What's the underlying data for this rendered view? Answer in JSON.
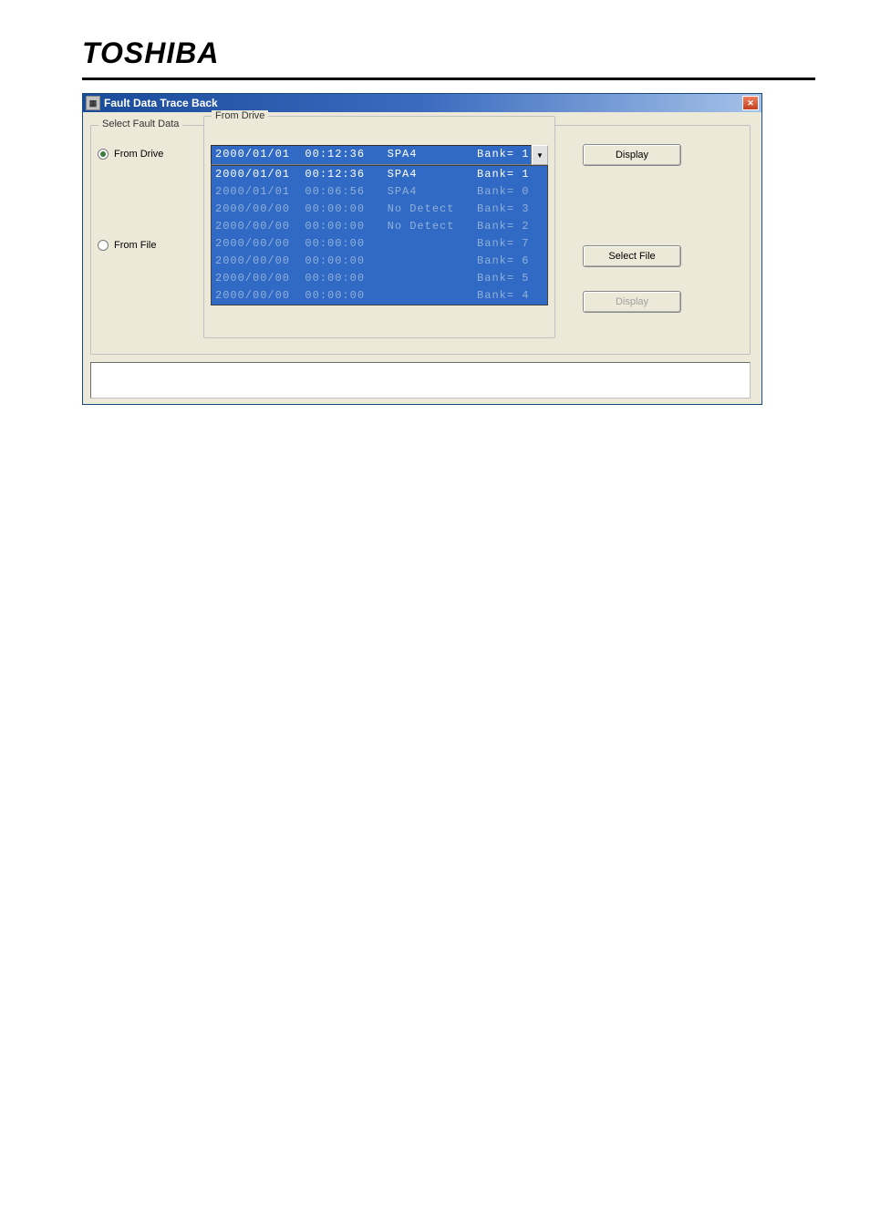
{
  "brand": "TOSHIBA",
  "window": {
    "title": "Fault Data Trace Back"
  },
  "outer_group_title": "Select Fault Data",
  "radio": {
    "from_drive": "From Drive",
    "from_file": "From File",
    "selected": "drive"
  },
  "inner_group_title": "From Drive",
  "dropdown": {
    "selected": {
      "date": "2000/01/01",
      "time": "00:12:36",
      "code": "SPA4",
      "bank": "Bank= 1"
    },
    "items": [
      {
        "date": "2000/01/01",
        "time": "00:12:36",
        "code": "SPA4",
        "bank": "Bank= 1",
        "dim": false
      },
      {
        "date": "2000/01/01",
        "time": "00:06:56",
        "code": "SPA4",
        "bank": "Bank= 0",
        "dim": true
      },
      {
        "date": "2000/00/00",
        "time": "00:00:00",
        "code": "No Detect",
        "bank": "Bank= 3",
        "dim": true
      },
      {
        "date": "2000/00/00",
        "time": "00:00:00",
        "code": "No Detect",
        "bank": "Bank= 2",
        "dim": true
      },
      {
        "date": "2000/00/00",
        "time": "00:00:00",
        "code": "",
        "bank": "Bank= 7",
        "dim": true
      },
      {
        "date": "2000/00/00",
        "time": "00:00:00",
        "code": "",
        "bank": "Bank= 6",
        "dim": true
      },
      {
        "date": "2000/00/00",
        "time": "00:00:00",
        "code": "",
        "bank": "Bank= 5",
        "dim": true
      },
      {
        "date": "2000/00/00",
        "time": "00:00:00",
        "code": "",
        "bank": "Bank= 4",
        "dim": true
      }
    ]
  },
  "buttons": {
    "display_drive": "Display",
    "select_file": "Select File",
    "display_file": "Display"
  }
}
